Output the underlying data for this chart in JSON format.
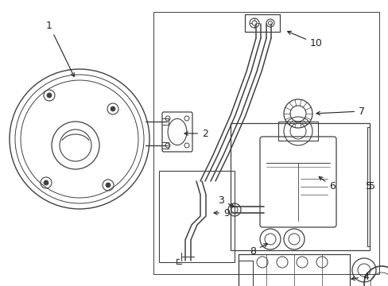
{
  "background_color": "#ffffff",
  "line_color": "#404040",
  "text_color": "#222222",
  "fig_width": 4.89,
  "fig_height": 3.6,
  "dpi": 100
}
